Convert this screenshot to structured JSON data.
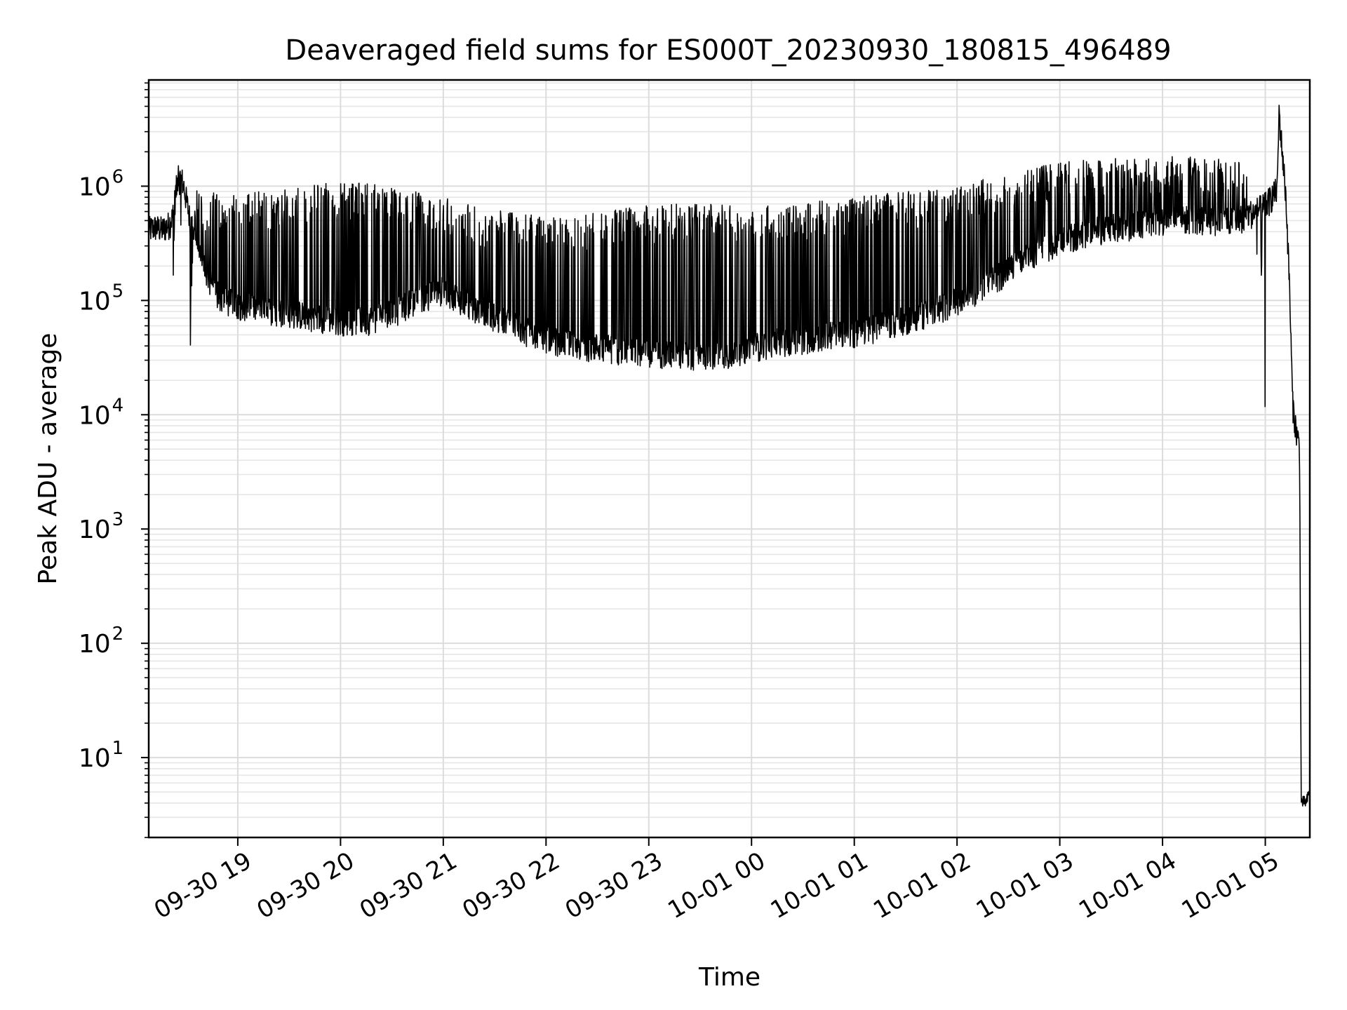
{
  "chart_data": {
    "type": "line",
    "title": "Deaveraged field sums for ES000T_20230930_180815_496489",
    "xlabel": "Time",
    "ylabel": "Peak ADU - average",
    "yscale": "log",
    "ylim": [
      2,
      8500000
    ],
    "xlim": [
      "2023-09-30 18:08",
      "2023-10-01 05:26"
    ],
    "grid": true,
    "legend": "none",
    "line_color": "#000000",
    "x_ticks": [
      {
        "t": "2023-09-30 19:00",
        "label": "09-30 19"
      },
      {
        "t": "2023-09-30 20:00",
        "label": "09-30 20"
      },
      {
        "t": "2023-09-30 21:00",
        "label": "09-30 21"
      },
      {
        "t": "2023-09-30 22:00",
        "label": "09-30 22"
      },
      {
        "t": "2023-09-30 23:00",
        "label": "09-30 23"
      },
      {
        "t": "2023-10-01 00:00",
        "label": "10-01 00"
      },
      {
        "t": "2023-10-01 01:00",
        "label": "10-01 01"
      },
      {
        "t": "2023-10-01 02:00",
        "label": "10-01 02"
      },
      {
        "t": "2023-10-01 03:00",
        "label": "10-01 03"
      },
      {
        "t": "2023-10-01 04:00",
        "label": "10-01 04"
      },
      {
        "t": "2023-10-01 05:00",
        "label": "10-01 05"
      }
    ],
    "y_ticks": [
      {
        "value": 10,
        "base": "10",
        "exp": "1"
      },
      {
        "value": 100,
        "base": "10",
        "exp": "2"
      },
      {
        "value": 1000,
        "base": "10",
        "exp": "3"
      },
      {
        "value": 10000,
        "base": "10",
        "exp": "4"
      },
      {
        "value": 100000,
        "base": "10",
        "exp": "5"
      },
      {
        "value": 1000000,
        "base": "10",
        "exp": "6"
      }
    ],
    "series": [
      {
        "x": [
          "2023-09-30 18:08",
          "2023-09-30 18:12",
          "2023-09-30 18:16",
          "2023-09-30 18:20",
          "2023-09-30 18:22",
          "2023-09-30 18:25",
          "2023-09-30 18:28",
          "2023-09-30 18:32",
          "2023-09-30 18:36",
          "2023-09-30 18:40",
          "2023-09-30 18:45",
          "2023-09-30 18:50",
          "2023-09-30 19:00",
          "2023-09-30 19:15",
          "2023-09-30 19:30",
          "2023-09-30 19:45",
          "2023-09-30 20:00",
          "2023-09-30 20:15",
          "2023-09-30 20:30",
          "2023-09-30 20:45",
          "2023-09-30 21:00",
          "2023-09-30 21:15",
          "2023-09-30 21:30",
          "2023-09-30 21:45",
          "2023-09-30 22:00",
          "2023-09-30 22:15",
          "2023-09-30 22:30",
          "2023-09-30 22:45",
          "2023-09-30 23:00",
          "2023-09-30 23:15",
          "2023-09-30 23:30",
          "2023-09-30 23:45",
          "2023-10-01 00:00",
          "2023-10-01 00:15",
          "2023-10-01 00:30",
          "2023-10-01 00:45",
          "2023-10-01 01:00",
          "2023-10-01 01:15",
          "2023-10-01 01:30",
          "2023-10-01 01:45",
          "2023-10-01 02:00",
          "2023-10-01 02:15",
          "2023-10-01 02:30",
          "2023-10-01 02:45",
          "2023-10-01 03:00",
          "2023-10-01 03:15",
          "2023-10-01 03:30",
          "2023-10-01 03:45",
          "2023-10-01 04:00",
          "2023-10-01 04:15",
          "2023-10-01 04:30",
          "2023-10-01 04:45",
          "2023-10-01 05:00",
          "2023-10-01 05:07",
          "2023-10-01 05:08",
          "2023-10-01 05:12",
          "2023-10-01 05:14",
          "2023-10-01 05:16",
          "2023-10-01 05:18",
          "2023-10-01 05:20",
          "2023-10-01 05:21",
          "2023-10-01 05:22",
          "2023-10-01 05:24",
          "2023-10-01 05:26"
        ],
        "baseline": [
          400000,
          420000,
          400000,
          450000,
          520000,
          1150000,
          1050000,
          500000,
          300000,
          200000,
          130000,
          100000,
          90000,
          80000,
          75000,
          70000,
          65000,
          65000,
          75000,
          100000,
          120000,
          90000,
          70000,
          55000,
          45000,
          40000,
          38000,
          36000,
          34000,
          32000,
          32000,
          33000,
          38000,
          42000,
          45000,
          48000,
          50000,
          58000,
          65000,
          78000,
          95000,
          130000,
          180000,
          250000,
          320000,
          380000,
          420000,
          450000,
          480000,
          500000,
          480000,
          500000,
          650000,
          900000,
          4300000,
          800000,
          150000,
          12000,
          7000,
          5000,
          4,
          4,
          4,
          5
        ],
        "spike_top": [
          0,
          0,
          0,
          0,
          0,
          1850000,
          0,
          0,
          950000,
          800000,
          900000,
          800000,
          900000,
          900000,
          1000000,
          1050000,
          1100000,
          1050000,
          1000000,
          900000,
          800000,
          700000,
          620000,
          580000,
          550000,
          520000,
          600000,
          650000,
          700000,
          700000,
          720000,
          700000,
          660000,
          680000,
          720000,
          760000,
          800000,
          850000,
          900000,
          950000,
          1000000,
          1150000,
          1350000,
          1500000,
          1650000,
          1700000,
          1750000,
          1800000,
          1800000,
          1850000,
          1750000,
          1700000,
          0,
          0,
          0,
          0,
          0,
          0,
          0,
          0,
          0,
          0,
          0,
          0
        ],
        "spike_low": [
          0,
          0,
          0,
          0,
          0,
          0,
          0,
          0,
          0,
          0,
          0,
          0,
          0,
          0,
          0,
          0,
          0,
          0,
          0,
          0,
          0,
          0,
          0,
          0,
          0,
          0,
          0,
          0,
          0,
          0,
          0,
          0,
          0,
          0,
          0,
          0,
          0,
          0,
          0,
          0,
          0,
          0,
          0,
          0,
          0,
          0,
          0,
          0,
          0,
          0,
          0,
          0,
          0,
          0,
          0,
          0,
          0,
          0,
          0,
          0,
          0,
          0,
          0,
          0
        ]
      }
    ]
  }
}
